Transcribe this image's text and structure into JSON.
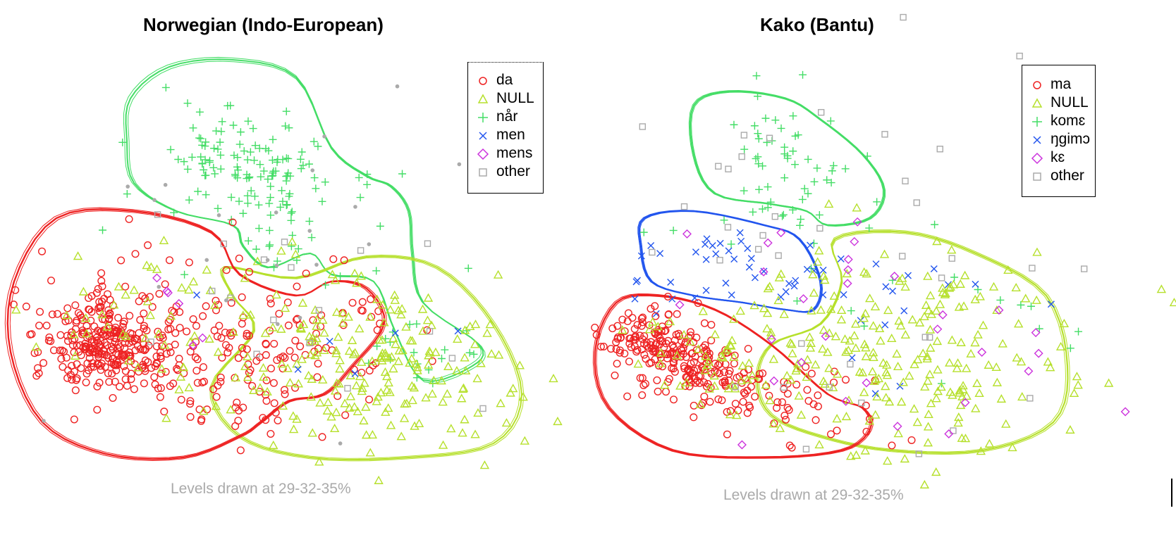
{
  "colors": {
    "red": "#ee2222",
    "yellow": "#b6e02c",
    "green": "#44dd66",
    "blue": "#2255ee",
    "magenta": "#cc33dd",
    "gray": "#aaaaaa"
  },
  "chart_data": [
    {
      "type": "scatter",
      "title": "Norwegian (Indo-European)",
      "subtitle": "Levels drawn at 29-32-35%",
      "legend_placement": "top-right",
      "grid": false,
      "axes_shown": false,
      "series": [
        {
          "name": "da",
          "symbol": "circle",
          "color": "red"
        },
        {
          "name": "NULL",
          "symbol": "triangle",
          "color": "yellow"
        },
        {
          "name": "når",
          "symbol": "plus",
          "color": "green"
        },
        {
          "name": "men",
          "symbol": "cross",
          "color": "blue"
        },
        {
          "name": "mens",
          "symbol": "diamond",
          "color": "magenta"
        },
        {
          "name": "other",
          "symbol": "square",
          "color": "gray"
        }
      ]
    },
    {
      "type": "scatter",
      "title": "Kako (Bantu)",
      "subtitle": "Levels drawn at 29-32-35%",
      "legend_placement": "top-right",
      "grid": false,
      "axes_shown": false,
      "series": [
        {
          "name": "ma",
          "symbol": "circle",
          "color": "red"
        },
        {
          "name": "NULL",
          "symbol": "triangle",
          "color": "yellow"
        },
        {
          "name": "komɛ",
          "symbol": "plus",
          "color": "green"
        },
        {
          "name": "ŋgimɔ",
          "symbol": "cross",
          "color": "blue"
        },
        {
          "name": "kɛ",
          "symbol": "diamond",
          "color": "magenta"
        },
        {
          "name": "other",
          "symbol": "square",
          "color": "gray"
        }
      ]
    }
  ]
}
